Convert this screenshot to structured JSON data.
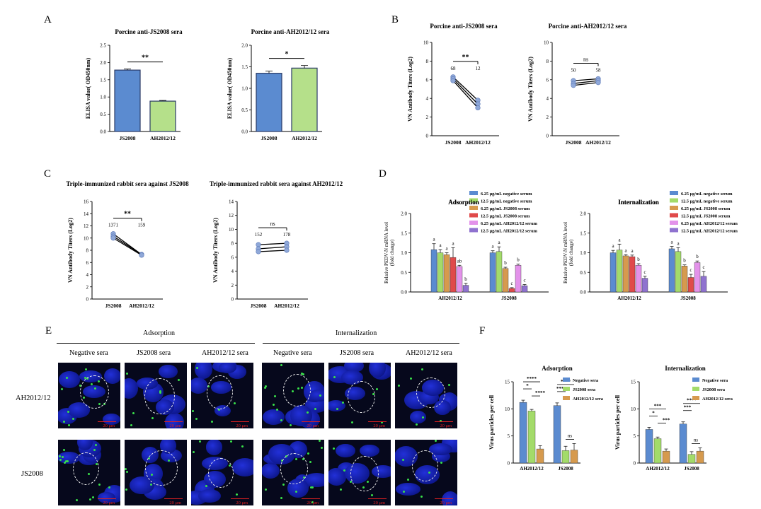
{
  "panels": {
    "A": "A",
    "B": "B",
    "C": "C",
    "D": "D",
    "E": "E",
    "F": "F"
  },
  "chart_data": [
    {
      "id": "A1",
      "type": "bar",
      "title": "Porcine anti-JS2008 sera",
      "ylabel": "ELISA value( OD450nm)",
      "categories": [
        "JS2008",
        "AH2012/12"
      ],
      "values": [
        1.78,
        0.88
      ],
      "errors": [
        0.03,
        0.02
      ],
      "colors": [
        "#5b8bd0",
        "#b5e08a"
      ],
      "ylim": [
        0,
        2.5
      ],
      "yticks": [
        "0.0",
        "0.5",
        "1.0",
        "1.5",
        "2.0",
        "2.5"
      ],
      "significance": "**"
    },
    {
      "id": "A2",
      "type": "bar",
      "title": "Porcine anti-AH2012/12 sera",
      "ylabel": "ELISA value( OD450nm)",
      "categories": [
        "JS2008",
        "AH2012/12"
      ],
      "values": [
        1.35,
        1.47
      ],
      "errors": [
        0.05,
        0.06
      ],
      "colors": [
        "#5b8bd0",
        "#b5e08a"
      ],
      "ylim": [
        0,
        2.0
      ],
      "yticks": [
        "0.0",
        "0.5",
        "1.0",
        "1.5",
        "2.0"
      ],
      "significance": "*"
    },
    {
      "id": "B1",
      "type": "line",
      "title": "Porcine anti-JS2008 sera",
      "ylabel": "VN Antibody Titers (Log2)",
      "categories": [
        "JS2008",
        "AH2012/12"
      ],
      "series": [
        {
          "values": [
            6.3,
            3.8
          ]
        },
        {
          "values": [
            6.1,
            3.4
          ]
        },
        {
          "values": [
            5.9,
            3.0
          ]
        }
      ],
      "ylim": [
        0,
        10
      ],
      "yticks": [
        "0",
        "2",
        "4",
        "6",
        "8",
        "10"
      ],
      "point_labels": [
        "68",
        "12"
      ],
      "significance": "**"
    },
    {
      "id": "B2",
      "type": "line",
      "title": "Porcine anti-AH2012/12 sera",
      "ylabel": "VN Antibody Titers (Log2)",
      "categories": [
        "JS2008",
        "AH2012/12"
      ],
      "series": [
        {
          "values": [
            5.9,
            6.1
          ]
        },
        {
          "values": [
            5.6,
            5.9
          ]
        },
        {
          "values": [
            5.4,
            5.7
          ]
        }
      ],
      "ylim": [
        0,
        10
      ],
      "yticks": [
        "0",
        "2",
        "4",
        "6",
        "8",
        "10"
      ],
      "point_labels": [
        "50",
        "58"
      ],
      "significance": "ns"
    },
    {
      "id": "C1",
      "type": "line",
      "title": "Triple-immunized rabbit sera against JS2008",
      "ylabel": "VN Antibody Titers (Log2)",
      "categories": [
        "JS2008",
        "AH2012/12"
      ],
      "series": [
        {
          "values": [
            10.7,
            7.3
          ]
        },
        {
          "values": [
            10.3,
            7.3
          ]
        },
        {
          "values": [
            10.0,
            7.2
          ]
        }
      ],
      "ylim": [
        0,
        16
      ],
      "yticks": [
        "0",
        "2",
        "4",
        "6",
        "8",
        "10",
        "12",
        "14",
        "16"
      ],
      "point_labels": [
        "1371",
        "159"
      ],
      "significance": "**"
    },
    {
      "id": "C2",
      "type": "line",
      "title": "Triple-immunized rabbit sera against AH2012/12",
      "ylabel": "VN Antibody Titers (Log2)",
      "categories": [
        "JS2008",
        "AH2012/12"
      ],
      "series": [
        {
          "values": [
            7.8,
            8.0
          ]
        },
        {
          "values": [
            7.2,
            7.5
          ]
        },
        {
          "values": [
            6.8,
            7.0
          ]
        }
      ],
      "ylim": [
        0,
        14
      ],
      "yticks": [
        "0",
        "2",
        "4",
        "6",
        "8",
        "10",
        "12",
        "14"
      ],
      "point_labels": [
        "152",
        "178"
      ],
      "significance": "ns"
    },
    {
      "id": "D1",
      "type": "bar",
      "title": "Adsorption",
      "ylabel": "Relative PEDV-N mRNA level\n(fold change)",
      "categories": [
        "AH2012/12",
        "JS2008"
      ],
      "series": [
        {
          "name": "6.25 μg/mL negative serum",
          "values": [
            1.08,
            1.0
          ],
          "errors": [
            0.15,
            0.05
          ],
          "letters": [
            "a",
            "a"
          ]
        },
        {
          "name": "12.5 μg/mL negative serum",
          "values": [
            1.0,
            1.03
          ],
          "errors": [
            0.08,
            0.12
          ],
          "letters": [
            "a",
            "a"
          ]
        },
        {
          "name": "6.25 μg/mL JS2008 serum",
          "values": [
            0.95,
            0.6
          ],
          "errors": [
            0.05,
            0.03
          ],
          "letters": [
            "a",
            "b"
          ]
        },
        {
          "name": "12.5 μg/mL JS2008 serum",
          "values": [
            0.88,
            0.09
          ],
          "errors": [
            0.25,
            0.02
          ],
          "letters": [
            "a",
            "c"
          ]
        },
        {
          "name": "6.25 μg/mL AH2012/12 serum",
          "values": [
            0.65,
            0.68
          ],
          "errors": [
            0.03,
            0.03
          ],
          "letters": [
            "ab",
            "b"
          ]
        },
        {
          "name": "12.5 μg/mL AH2012/12 serum",
          "values": [
            0.17,
            0.16
          ],
          "errors": [
            0.05,
            0.03
          ],
          "letters": [
            "b",
            "c"
          ]
        }
      ],
      "colors": [
        "#5b8bd0",
        "#a3db6a",
        "#d69a4e",
        "#e04a4a",
        "#e392ea",
        "#8f72cf"
      ],
      "ylim": [
        0,
        2.0
      ],
      "yticks": [
        "0.0",
        "0.5",
        "1.0",
        "1.5",
        "2.0"
      ]
    },
    {
      "id": "D2",
      "type": "bar",
      "title": "Internalization",
      "ylabel": "Relative PEDV-N mRNA level\n(fold change)",
      "categories": [
        "AH2012/12",
        "JS2008"
      ],
      "series": [
        {
          "name": "6.25 μg/mL negative serum",
          "values": [
            1.0,
            1.1
          ],
          "errors": [
            0.06,
            0.06
          ],
          "letters": [
            "a",
            "a"
          ]
        },
        {
          "name": "12.5 μg/mL negative serum",
          "values": [
            1.07,
            1.03
          ],
          "errors": [
            0.15,
            0.1
          ],
          "letters": [
            "a",
            "a"
          ]
        },
        {
          "name": "6.25 μg/mL JS2008 serum",
          "values": [
            0.92,
            0.66
          ],
          "errors": [
            0.03,
            0.03
          ],
          "letters": [
            "a",
            "b"
          ]
        },
        {
          "name": "12.5 μg/mL JS2008 serum",
          "values": [
            0.9,
            0.37
          ],
          "errors": [
            0.04,
            0.08
          ],
          "letters": [
            "a",
            "c"
          ]
        },
        {
          "name": "6.25 μg/mL AH2012/12 serum",
          "values": [
            0.68,
            0.75
          ],
          "errors": [
            0.04,
            0.04
          ],
          "letters": [
            "b",
            "b"
          ]
        },
        {
          "name": "12.5 μg/mL AH2012/12 serum",
          "values": [
            0.35,
            0.4
          ],
          "errors": [
            0.05,
            0.12
          ],
          "letters": [
            "c",
            "c"
          ]
        }
      ],
      "colors": [
        "#5b8bd0",
        "#a3db6a",
        "#d69a4e",
        "#e04a4a",
        "#e392ea",
        "#8f72cf"
      ],
      "ylim": [
        0,
        2.0
      ],
      "yticks": [
        "0.0",
        "0.5",
        "1.0",
        "1.5",
        "2.0"
      ]
    },
    {
      "id": "F1",
      "type": "bar",
      "title": "Adsorption",
      "ylabel": "Virus particles per cell",
      "categories": [
        "AH2012/12",
        "JS2008"
      ],
      "series": [
        {
          "name": "Negative sera",
          "values": [
            11.2,
            10.6
          ],
          "errors": [
            0.4,
            0.5
          ]
        },
        {
          "name": "JS2008 sera",
          "values": [
            9.6,
            2.3
          ],
          "errors": [
            0.3,
            0.8
          ]
        },
        {
          "name": "AH2012/12 sera",
          "values": [
            2.6,
            2.4
          ],
          "errors": [
            0.6,
            1.2
          ]
        }
      ],
      "colors": [
        "#5b8bd0",
        "#a3db6a",
        "#d69a4e"
      ],
      "ylim": [
        0,
        15
      ],
      "yticks": [
        "0",
        "5",
        "10",
        "15"
      ],
      "significance": {
        "AH2012/12": [
          "****",
          "*",
          "****"
        ],
        "JS2008": [
          "****",
          "****",
          "ns"
        ]
      }
    },
    {
      "id": "F2",
      "type": "bar",
      "title": "Internalization",
      "ylabel": "Virus particles per cell",
      "categories": [
        "AH2012/12",
        "JS2008"
      ],
      "series": [
        {
          "name": "Negative sera",
          "values": [
            6.2,
            7.2
          ],
          "errors": [
            0.4,
            0.4
          ]
        },
        {
          "name": "JS2008 sera",
          "values": [
            4.5,
            1.6
          ],
          "errors": [
            0.3,
            0.5
          ]
        },
        {
          "name": "AH2012/12 sera",
          "values": [
            2.2,
            2.2
          ],
          "errors": [
            0.4,
            0.6
          ]
        }
      ],
      "colors": [
        "#5b8bd0",
        "#a3db6a",
        "#d69a4e"
      ],
      "ylim": [
        0,
        15
      ],
      "yticks": [
        "0",
        "5",
        "10",
        "15"
      ],
      "significance": {
        "AH2012/12": [
          "***",
          "*",
          "***"
        ],
        "JS2008": [
          "****",
          "***",
          "ns"
        ]
      }
    }
  ],
  "micrographs": {
    "group_labels": [
      "Adsorption",
      "Internalization"
    ],
    "column_labels": [
      "Negative sera",
      "JS2008 sera",
      "AH2012/12 sera",
      "Negative sera",
      "JS2008 sera",
      "AH2012/12 sera"
    ],
    "row_labels": [
      "AH2012/12",
      "JS2008"
    ],
    "scalebar": "20 μm"
  }
}
